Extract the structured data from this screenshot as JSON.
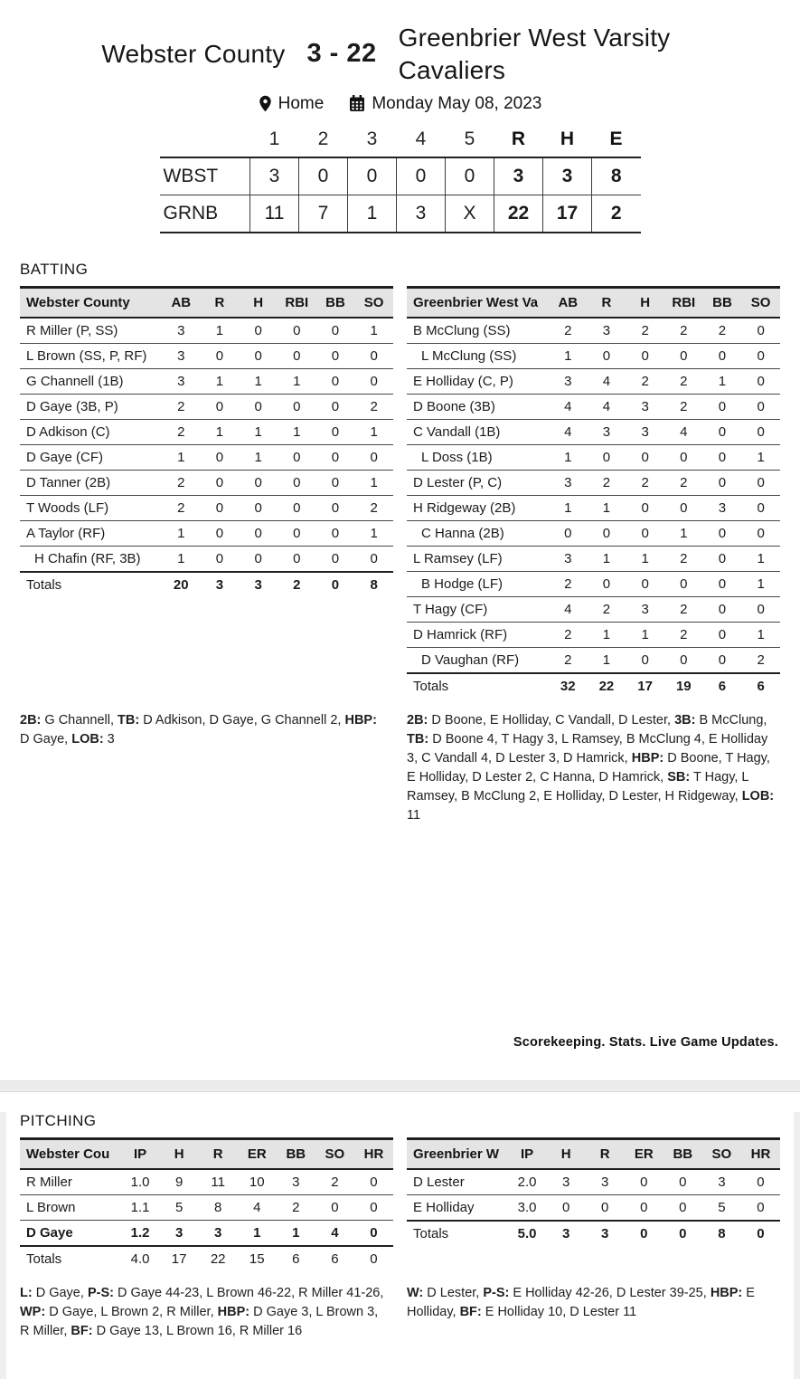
{
  "header": {
    "team1": "Webster County",
    "score": "3 - 22",
    "team2": "Greenbrier West Varsity Cavaliers",
    "location_label": "Home",
    "date": "Monday May 08, 2023"
  },
  "linescore": {
    "columns": [
      "1",
      "2",
      "3",
      "4",
      "5",
      "R",
      "H",
      "E"
    ],
    "rows": [
      {
        "team": "WBST",
        "innings": [
          "3",
          "0",
          "0",
          "0",
          "0"
        ],
        "r": "3",
        "h": "3",
        "e": "8"
      },
      {
        "team": "GRNB",
        "innings": [
          "11",
          "7",
          "1",
          "3",
          "X"
        ],
        "r": "22",
        "h": "17",
        "e": "2"
      }
    ]
  },
  "batting": {
    "section_label": "BATTING",
    "left": {
      "team_header": "Webster County",
      "columns": [
        "AB",
        "R",
        "H",
        "RBI",
        "BB",
        "SO"
      ],
      "players": [
        {
          "name": "R Miller (P, SS)",
          "sub": false,
          "bold": false,
          "stats": [
            "3",
            "1",
            "0",
            "0",
            "0",
            "1"
          ]
        },
        {
          "name": "L Brown (SS, P, RF)",
          "sub": false,
          "bold": false,
          "stats": [
            "3",
            "0",
            "0",
            "0",
            "0",
            "0"
          ]
        },
        {
          "name": "G Channell (1B)",
          "sub": false,
          "bold": false,
          "stats": [
            "3",
            "1",
            "1",
            "1",
            "0",
            "0"
          ]
        },
        {
          "name": "D Gaye (3B, P)",
          "sub": false,
          "bold": false,
          "stats": [
            "2",
            "0",
            "0",
            "0",
            "0",
            "2"
          ]
        },
        {
          "name": "D Adkison (C)",
          "sub": false,
          "bold": false,
          "stats": [
            "2",
            "1",
            "1",
            "1",
            "0",
            "1"
          ]
        },
        {
          "name": "D Gaye (CF)",
          "sub": false,
          "bold": false,
          "stats": [
            "1",
            "0",
            "1",
            "0",
            "0",
            "0"
          ]
        },
        {
          "name": "D Tanner (2B)",
          "sub": false,
          "bold": false,
          "stats": [
            "2",
            "0",
            "0",
            "0",
            "0",
            "1"
          ]
        },
        {
          "name": "T Woods (LF)",
          "sub": false,
          "bold": false,
          "stats": [
            "2",
            "0",
            "0",
            "0",
            "0",
            "2"
          ]
        },
        {
          "name": "A Taylor (RF)",
          "sub": false,
          "bold": false,
          "stats": [
            "1",
            "0",
            "0",
            "0",
            "0",
            "1"
          ]
        },
        {
          "name": "H Chafin (RF, 3B)",
          "sub": true,
          "bold": false,
          "stats": [
            "1",
            "0",
            "0",
            "0",
            "0",
            "0"
          ]
        }
      ],
      "totals": {
        "label": "Totals",
        "bold": true,
        "stats": [
          "20",
          "3",
          "3",
          "2",
          "0",
          "8"
        ]
      },
      "notes": [
        {
          "b": "2B:",
          "t": " G Channell, "
        },
        {
          "b": "TB:",
          "t": " D Adkison, D Gaye, G Channell 2, "
        },
        {
          "b": "HBP:",
          "t": " D Gaye, "
        },
        {
          "b": "LOB:",
          "t": " 3"
        }
      ]
    },
    "right": {
      "team_header": "Greenbrier West Va",
      "columns": [
        "AB",
        "R",
        "H",
        "RBI",
        "BB",
        "SO"
      ],
      "players": [
        {
          "name": "B McClung (SS)",
          "sub": false,
          "bold": false,
          "stats": [
            "2",
            "3",
            "2",
            "2",
            "2",
            "0"
          ]
        },
        {
          "name": "L McClung (SS)",
          "sub": true,
          "bold": false,
          "stats": [
            "1",
            "0",
            "0",
            "0",
            "0",
            "0"
          ]
        },
        {
          "name": "E Holliday (C, P)",
          "sub": false,
          "bold": false,
          "stats": [
            "3",
            "4",
            "2",
            "2",
            "1",
            "0"
          ]
        },
        {
          "name": "D Boone (3B)",
          "sub": false,
          "bold": false,
          "stats": [
            "4",
            "4",
            "3",
            "2",
            "0",
            "0"
          ]
        },
        {
          "name": "C Vandall (1B)",
          "sub": false,
          "bold": false,
          "stats": [
            "4",
            "3",
            "3",
            "4",
            "0",
            "0"
          ]
        },
        {
          "name": "L Doss (1B)",
          "sub": true,
          "bold": false,
          "stats": [
            "1",
            "0",
            "0",
            "0",
            "0",
            "1"
          ]
        },
        {
          "name": "D Lester (P, C)",
          "sub": false,
          "bold": false,
          "stats": [
            "3",
            "2",
            "2",
            "2",
            "0",
            "0"
          ]
        },
        {
          "name": "H Ridgeway (2B)",
          "sub": false,
          "bold": false,
          "stats": [
            "1",
            "1",
            "0",
            "0",
            "3",
            "0"
          ]
        },
        {
          "name": "C Hanna (2B)",
          "sub": true,
          "bold": false,
          "stats": [
            "0",
            "0",
            "0",
            "1",
            "0",
            "0"
          ]
        },
        {
          "name": "L Ramsey (LF)",
          "sub": false,
          "bold": false,
          "stats": [
            "3",
            "1",
            "1",
            "2",
            "0",
            "1"
          ]
        },
        {
          "name": "B Hodge (LF)",
          "sub": true,
          "bold": false,
          "stats": [
            "2",
            "0",
            "0",
            "0",
            "0",
            "1"
          ]
        },
        {
          "name": "T Hagy (CF)",
          "sub": false,
          "bold": false,
          "stats": [
            "4",
            "2",
            "3",
            "2",
            "0",
            "0"
          ]
        },
        {
          "name": "D Hamrick (RF)",
          "sub": false,
          "bold": false,
          "stats": [
            "2",
            "1",
            "1",
            "2",
            "0",
            "1"
          ]
        },
        {
          "name": "D Vaughan (RF)",
          "sub": true,
          "bold": false,
          "stats": [
            "2",
            "1",
            "0",
            "0",
            "0",
            "2"
          ]
        }
      ],
      "totals": {
        "label": "Totals",
        "bold": true,
        "stats": [
          "32",
          "22",
          "17",
          "19",
          "6",
          "6"
        ]
      },
      "notes": [
        {
          "b": "2B:",
          "t": " D Boone, E Holliday, C Vandall, D Lester, "
        },
        {
          "b": "3B:",
          "t": " B McClung, "
        },
        {
          "b": "TB:",
          "t": " D Boone 4, T Hagy 3, L Ramsey, B McClung 4, E Holliday 3, C Vandall 4, D Lester 3, D Hamrick, "
        },
        {
          "b": "HBP:",
          "t": " D Boone, T Hagy, E Holliday, D Lester 2, C Hanna, D Hamrick, "
        },
        {
          "b": "SB:",
          "t": " T Hagy, L Ramsey, B McClung 2, E Holliday, D Lester, H Ridgeway, "
        },
        {
          "b": "LOB:",
          "t": " 11"
        }
      ]
    }
  },
  "footer_tagline": "Scorekeeping. Stats. Live Game Updates.",
  "pitching": {
    "section_label": "PITCHING",
    "left": {
      "team_header": "Webster Cou",
      "columns": [
        "IP",
        "H",
        "R",
        "ER",
        "BB",
        "SO",
        "HR"
      ],
      "players": [
        {
          "name": "R Miller",
          "sub": false,
          "bold": false,
          "stats": [
            "1.0",
            "9",
            "11",
            "10",
            "3",
            "2",
            "0"
          ]
        },
        {
          "name": "L Brown",
          "sub": false,
          "bold": false,
          "stats": [
            "1.1",
            "5",
            "8",
            "4",
            "2",
            "0",
            "0"
          ]
        },
        {
          "name": "D Gaye",
          "sub": false,
          "bold": true,
          "stats": [
            "1.2",
            "3",
            "3",
            "1",
            "1",
            "4",
            "0"
          ]
        }
      ],
      "totals": {
        "label": "Totals",
        "bold": false,
        "stats": [
          "4.0",
          "17",
          "22",
          "15",
          "6",
          "6",
          "0"
        ]
      },
      "notes": [
        {
          "b": "L:",
          "t": " D Gaye, "
        },
        {
          "b": "P-S:",
          "t": " D Gaye 44-23, L Brown 46-22, R Miller 41-26, "
        },
        {
          "b": "WP:",
          "t": " D Gaye, L Brown 2, R Miller, "
        },
        {
          "b": "HBP:",
          "t": " D Gaye 3, L Brown 3, R Miller, "
        },
        {
          "b": "BF:",
          "t": " D Gaye 13, L Brown 16, R Miller 16"
        }
      ]
    },
    "right": {
      "team_header": "Greenbrier W",
      "columns": [
        "IP",
        "H",
        "R",
        "ER",
        "BB",
        "SO",
        "HR"
      ],
      "players": [
        {
          "name": "D Lester",
          "sub": false,
          "bold": false,
          "stats": [
            "2.0",
            "3",
            "3",
            "0",
            "0",
            "3",
            "0"
          ]
        },
        {
          "name": "E Holliday",
          "sub": false,
          "bold": false,
          "stats": [
            "3.0",
            "0",
            "0",
            "0",
            "0",
            "5",
            "0"
          ]
        }
      ],
      "totals": {
        "label": "Totals",
        "bold": true,
        "stats": [
          "5.0",
          "3",
          "3",
          "0",
          "0",
          "8",
          "0"
        ]
      },
      "notes": [
        {
          "b": "W:",
          "t": " D Lester, "
        },
        {
          "b": "P-S:",
          "t": " E Holliday 42-26, D Lester 39-25, "
        },
        {
          "b": "HBP:",
          "t": " E Holliday, "
        },
        {
          "b": "BF:",
          "t": " E Holliday 10, D Lester 11"
        }
      ]
    }
  },
  "colors": {
    "table_header_bg": "#e4e4e4",
    "border_dark": "#1f1f1f",
    "divider_bg": "#ececec",
    "text": "#1b1b1b"
  }
}
